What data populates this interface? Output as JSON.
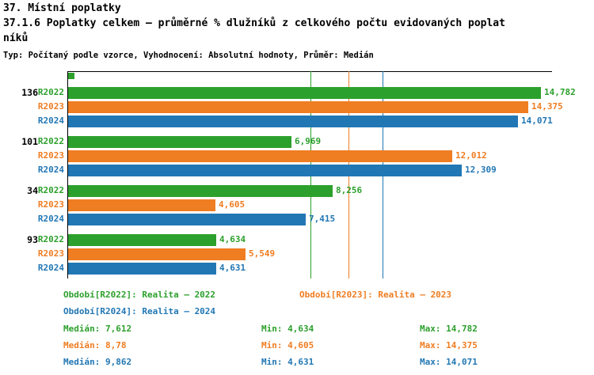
{
  "header": {
    "title_line1": "37. Místní poplatky",
    "title_line2": "37.1.6 Poplatky celkem – průměrné % dlužníků z celkového počtu evidovaných poplat",
    "title_line3": "níků",
    "meta": "Typ: Počítaný podle vzorce, Vyhodnocení: Absolutní hodnoty, Průměr: Medián"
  },
  "chart_data": {
    "type": "bar",
    "orientation": "horizontal",
    "x_max": 15.15,
    "unit": "% dlužníků",
    "grid": false,
    "series": [
      "R2022",
      "R2023",
      "R2024"
    ],
    "series_colors": {
      "R2022": "#2ca02c",
      "R2023": "#ef7d22",
      "R2024": "#2177b4"
    },
    "groups": [
      {
        "label": "136",
        "values": [
          {
            "series": "R2022",
            "value": 14.782,
            "display": "14,782"
          },
          {
            "series": "R2023",
            "value": 14.375,
            "display": "14,375"
          },
          {
            "series": "R2024",
            "value": 14.071,
            "display": "14,071"
          }
        ]
      },
      {
        "label": "101",
        "values": [
          {
            "series": "R2022",
            "value": 6.969,
            "display": "6,969"
          },
          {
            "series": "R2023",
            "value": 12.012,
            "display": "12,012"
          },
          {
            "series": "R2024",
            "value": 12.309,
            "display": "12,309"
          }
        ]
      },
      {
        "label": "34",
        "values": [
          {
            "series": "R2022",
            "value": 8.256,
            "display": "8,256"
          },
          {
            "series": "R2023",
            "value": 4.605,
            "display": "4,605"
          },
          {
            "series": "R2024",
            "value": 7.415,
            "display": "7,415"
          }
        ]
      },
      {
        "label": "93",
        "values": [
          {
            "series": "R2022",
            "value": 4.634,
            "display": "4,634"
          },
          {
            "series": "R2023",
            "value": 5.549,
            "display": "5,549"
          },
          {
            "series": "R2024",
            "value": 4.631,
            "display": "4,631"
          }
        ]
      }
    ],
    "median_lines": [
      {
        "series": "R2022",
        "value": 7.612
      },
      {
        "series": "R2023",
        "value": 8.78
      },
      {
        "series": "R2024",
        "value": 9.862
      }
    ]
  },
  "legend": {
    "r2022": "Období[R2022]: Realita – 2022",
    "r2023": "Období[R2023]: Realita – 2023",
    "r2024": "Období[R2024]: Realita – 2024"
  },
  "stats": [
    {
      "series": "R2022",
      "median": "Medián: 7,612",
      "min": "Min: 4,634",
      "max": "Max: 14,782"
    },
    {
      "series": "R2023",
      "median": "Medián: 8,78",
      "min": "Min: 4,605",
      "max": "Max: 14,375"
    },
    {
      "series": "R2024",
      "median": "Medián: 9,862",
      "min": "Min: 4,631",
      "max": "Max: 14,071"
    }
  ]
}
